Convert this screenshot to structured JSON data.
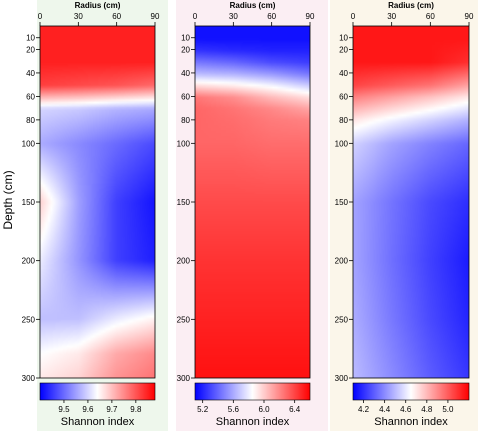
{
  "chart_data": {
    "type": "heatmap",
    "ylabel": "Depth (cm)",
    "y_ticks": [
      10,
      20,
      40,
      60,
      80,
      100,
      150,
      200,
      250,
      300
    ],
    "ylim": [
      0,
      300
    ],
    "x_ticks": [
      0,
      30,
      60,
      90
    ],
    "xlim": [
      0,
      90
    ],
    "colormap": [
      "#0000ff",
      "#ffffff",
      "#ff0000"
    ],
    "panels": [
      {
        "xlabel": "Radius (cm)",
        "background": "#eef7ec",
        "colorbar": {
          "label": "Shannon index",
          "range": [
            9.4,
            9.88
          ],
          "ticks": [
            "9.5",
            "9.6",
            "9.7",
            "9.8"
          ],
          "tick_values": [
            9.5,
            9.6,
            9.7,
            9.8
          ]
        },
        "radius": [
          0,
          30,
          60,
          90
        ],
        "depth": [
          0,
          10,
          30,
          50,
          70,
          100,
          150,
          200,
          250,
          280,
          300
        ],
        "values": [
          [
            9.85,
            9.85,
            9.85,
            9.85
          ],
          [
            9.85,
            9.85,
            9.85,
            9.85
          ],
          [
            9.85,
            9.85,
            9.85,
            9.85
          ],
          [
            9.82,
            9.81,
            9.8,
            9.78
          ],
          [
            9.6,
            9.59,
            9.57,
            9.56
          ],
          [
            9.56,
            9.53,
            9.5,
            9.47
          ],
          [
            9.68,
            9.55,
            9.46,
            9.42
          ],
          [
            9.62,
            9.54,
            9.46,
            9.43
          ],
          [
            9.58,
            9.58,
            9.62,
            9.65
          ],
          [
            9.64,
            9.66,
            9.72,
            9.75
          ],
          [
            9.66,
            9.68,
            9.74,
            9.77
          ]
        ]
      },
      {
        "xlabel": "Radius (cm)",
        "background": "#fbeef3",
        "colorbar": {
          "label": "Shannon index",
          "range": [
            5.1,
            6.6
          ],
          "ticks": [
            "5.2",
            "5.6",
            "6.0",
            "6.4"
          ],
          "tick_values": [
            5.2,
            5.6,
            6.0,
            6.4
          ]
        },
        "radius": [
          0,
          30,
          60,
          90
        ],
        "depth": [
          0,
          10,
          20,
          30,
          40,
          50,
          60,
          70,
          80,
          100,
          150,
          200,
          250,
          300
        ],
        "values": [
          [
            5.15,
            5.15,
            5.15,
            5.15
          ],
          [
            5.15,
            5.15,
            5.15,
            5.15
          ],
          [
            5.25,
            5.22,
            5.2,
            5.2
          ],
          [
            5.45,
            5.4,
            5.32,
            5.28
          ],
          [
            5.65,
            5.62,
            5.55,
            5.45
          ],
          [
            5.95,
            5.9,
            5.82,
            5.7
          ],
          [
            6.25,
            6.18,
            6.05,
            5.95
          ],
          [
            6.3,
            6.26,
            6.2,
            6.12
          ],
          [
            6.3,
            6.28,
            6.24,
            6.22
          ],
          [
            6.3,
            6.3,
            6.28,
            6.28
          ],
          [
            6.38,
            6.38,
            6.38,
            6.38
          ],
          [
            6.45,
            6.45,
            6.45,
            6.45
          ],
          [
            6.5,
            6.5,
            6.5,
            6.5
          ],
          [
            6.55,
            6.55,
            6.55,
            6.55
          ]
        ]
      },
      {
        "xlabel": "Radius (cm)",
        "background": "#fbf6ea",
        "colorbar": {
          "label": "Shannon index",
          "range": [
            4.1,
            5.2
          ],
          "ticks": [
            "4.2",
            "4.4",
            "4.6",
            "4.8",
            "5.0"
          ],
          "tick_values": [
            4.2,
            4.4,
            4.6,
            4.8,
            5.0
          ]
        },
        "radius": [
          0,
          30,
          60,
          90
        ],
        "depth": [
          0,
          10,
          30,
          50,
          60,
          80,
          100,
          150,
          200,
          250,
          300
        ],
        "values": [
          [
            5.15,
            5.15,
            5.15,
            5.15
          ],
          [
            5.15,
            5.15,
            5.15,
            5.15
          ],
          [
            5.15,
            5.15,
            5.15,
            5.1
          ],
          [
            5.05,
            5.0,
            4.95,
            4.85
          ],
          [
            4.92,
            4.85,
            4.78,
            4.7
          ],
          [
            4.7,
            4.62,
            4.55,
            4.48
          ],
          [
            4.55,
            4.45,
            4.38,
            4.32
          ],
          [
            4.45,
            4.35,
            4.26,
            4.2
          ],
          [
            4.45,
            4.34,
            4.24,
            4.16
          ],
          [
            4.47,
            4.36,
            4.26,
            4.18
          ],
          [
            4.5,
            4.4,
            4.3,
            4.22
          ]
        ]
      }
    ]
  }
}
